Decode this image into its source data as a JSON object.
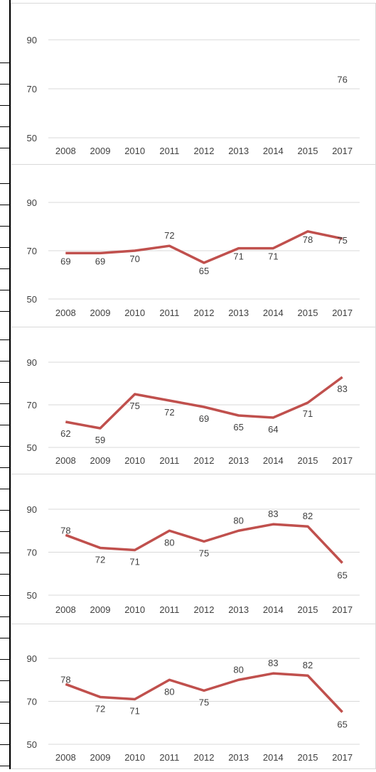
{
  "chart_data": [
    {
      "type": "line",
      "categories": [
        "2008",
        "2009",
        "2010",
        "2011",
        "2012",
        "2013",
        "2014",
        "2015",
        "2017"
      ],
      "values": [
        null,
        null,
        null,
        null,
        null,
        null,
        null,
        null,
        76
      ],
      "data_labels": [
        "",
        "",
        "",
        "",
        "",
        "",
        "",
        "",
        "76"
      ],
      "y_ticks": [
        "50",
        "70",
        "90"
      ],
      "ylim": [
        50,
        90
      ],
      "grid": true,
      "color": "#C0504D"
    },
    {
      "type": "line",
      "categories": [
        "2008",
        "2009",
        "2010",
        "2011",
        "2012",
        "2013",
        "2014",
        "2015",
        "2017"
      ],
      "values": [
        69,
        69,
        70,
        72,
        65,
        71,
        71,
        78,
        75
      ],
      "data_labels": [
        "69",
        "69",
        "70",
        "72",
        "65",
        "71",
        "71",
        "78",
        "75"
      ],
      "y_ticks": [
        "50",
        "70",
        "90"
      ],
      "ylim": [
        50,
        90
      ],
      "grid": true,
      "color": "#C0504D"
    },
    {
      "type": "line",
      "categories": [
        "2008",
        "2009",
        "2010",
        "2011",
        "2012",
        "2013",
        "2014",
        "2015",
        "2017"
      ],
      "values": [
        62,
        59,
        75,
        72,
        69,
        65,
        64,
        71,
        83
      ],
      "data_labels": [
        "62",
        "59",
        "75",
        "72",
        "69",
        "65",
        "64",
        "71",
        "83"
      ],
      "y_ticks": [
        "50",
        "70",
        "90"
      ],
      "ylim": [
        50,
        90
      ],
      "grid": true,
      "color": "#C0504D"
    },
    {
      "type": "line",
      "categories": [
        "2008",
        "2009",
        "2010",
        "2011",
        "2012",
        "2013",
        "2014",
        "2015",
        "2017"
      ],
      "values": [
        78,
        72,
        71,
        80,
        75,
        80,
        83,
        82,
        65
      ],
      "data_labels": [
        "78",
        "72",
        "71",
        "80",
        "75",
        "80",
        "83",
        "82",
        "65"
      ],
      "y_ticks": [
        "50",
        "70",
        "90"
      ],
      "ylim": [
        50,
        90
      ],
      "grid": true,
      "color": "#C0504D"
    },
    {
      "type": "line",
      "categories": [
        "2008",
        "2009",
        "2010",
        "2011",
        "2012",
        "2013",
        "2014",
        "2015",
        "2017"
      ],
      "values": [
        78,
        72,
        71,
        80,
        75,
        80,
        83,
        82,
        65
      ],
      "data_labels": [
        "78",
        "72",
        "71",
        "80",
        "75",
        "80",
        "83",
        "82",
        "65"
      ],
      "y_ticks": [
        "50",
        "70",
        "90"
      ],
      "ylim": [
        50,
        90
      ],
      "grid": true,
      "color": "#C0504D"
    }
  ]
}
